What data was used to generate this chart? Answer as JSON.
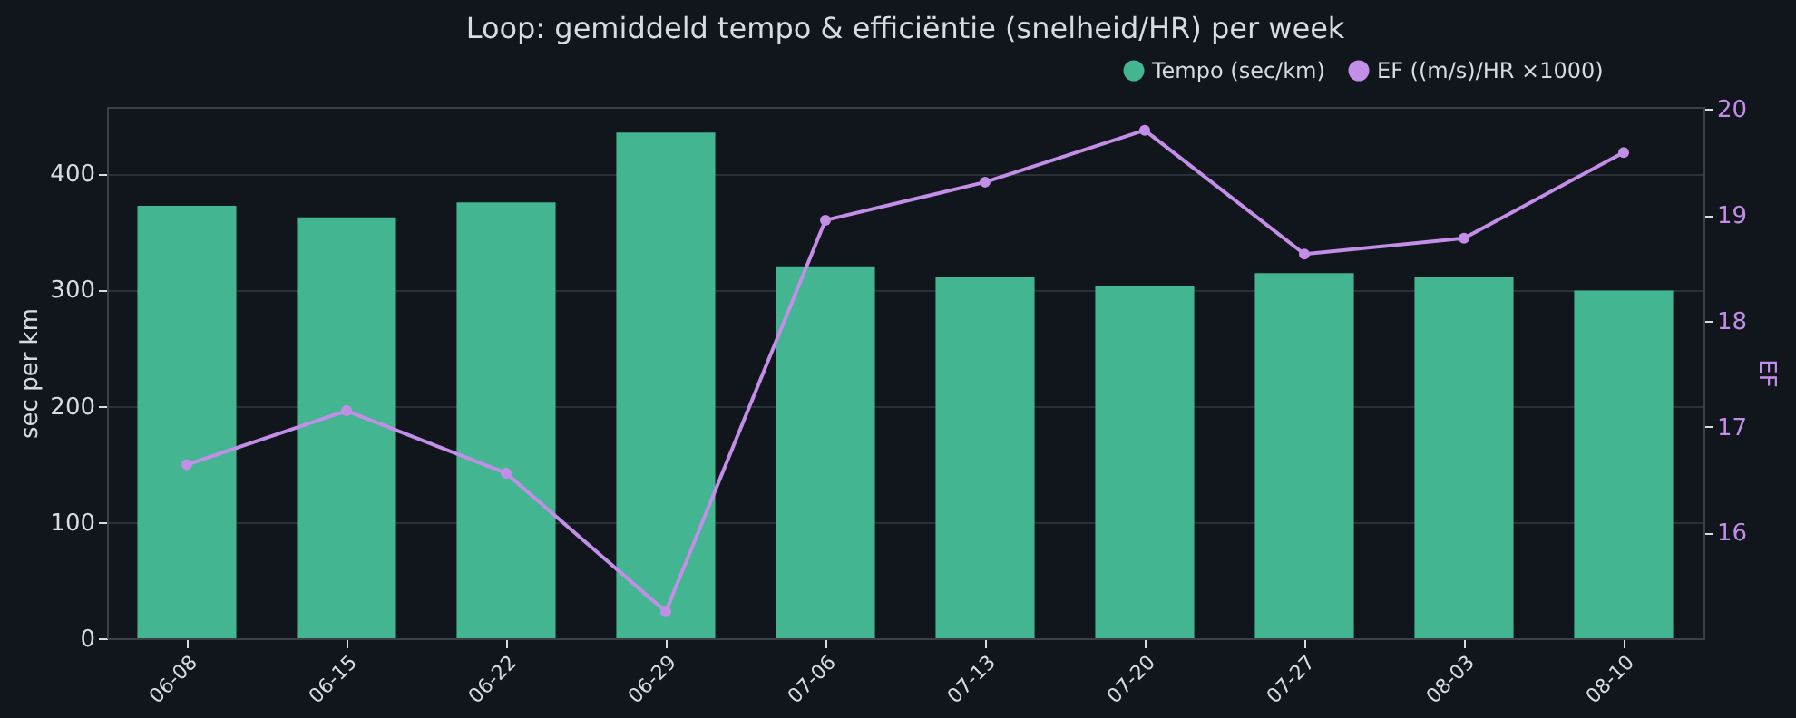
{
  "chart_data": {
    "type": "bar",
    "title": "Loop: gemiddeld tempo & efficiëntie (snelheid/HR) per week",
    "categories": [
      "06-08",
      "06-15",
      "06-22",
      "06-29",
      "07-06",
      "07-13",
      "07-20",
      "07-27",
      "08-03",
      "08-10"
    ],
    "series": [
      {
        "name": "Tempo (sec/km)",
        "color": "#44b591",
        "values": [
          372,
          362,
          375,
          435,
          320,
          311,
          303,
          314,
          311,
          299
        ]
      },
      {
        "name": "EF ((m/s)/HR ×1000)",
        "type": "line",
        "axis": "y2",
        "color": "#c38ee8",
        "marker": "circle",
        "values": [
          16.64,
          17.15,
          16.56,
          15.25,
          18.95,
          19.31,
          19.8,
          18.63,
          18.78,
          19.59
        ]
      }
    ],
    "ylabel": "sec per km",
    "y2label": "EF",
    "ylim": [
      0,
      457
    ],
    "yticks": [
      0,
      100,
      200,
      300,
      400
    ],
    "y2lim": [
      15.0,
      20.02
    ],
    "y2ticks": [
      16,
      17,
      18,
      19,
      20
    ],
    "grid": "y",
    "legend": "top right"
  }
}
